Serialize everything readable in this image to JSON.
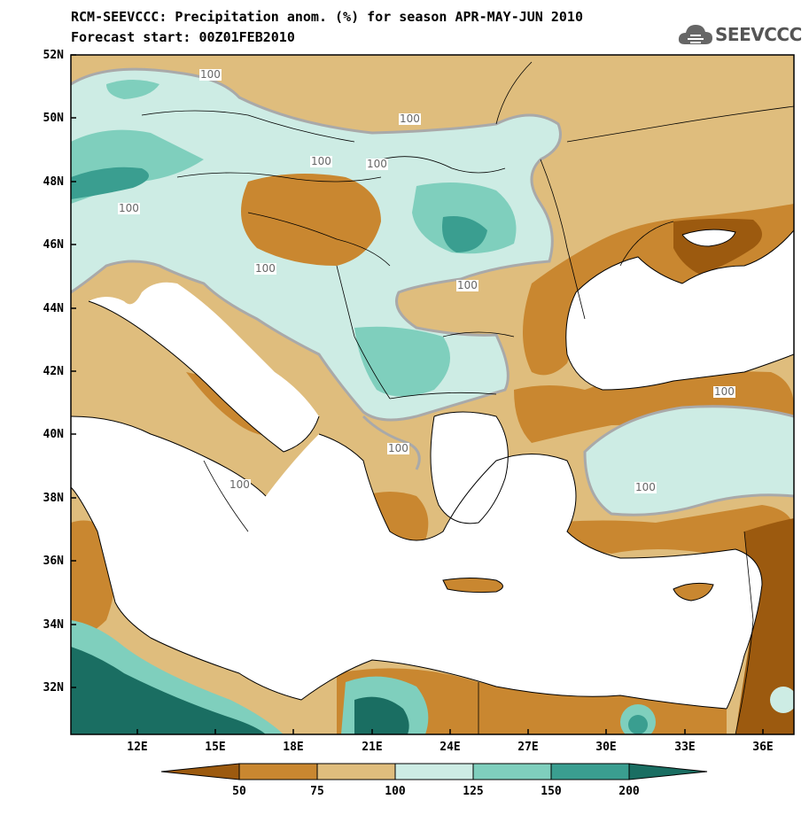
{
  "title": {
    "line1": "RCM-SEEVCCC: Precipitation anom. (%) for season APR-MAY-JUN 2010",
    "line2": "Forecast start: 00Z01FEB2010"
  },
  "logo": {
    "text": "SEEVCCC",
    "icon": "cloud-icon"
  },
  "axes": {
    "lat_labels": [
      "52N",
      "50N",
      "48N",
      "46N",
      "44N",
      "42N",
      "40N",
      "38N",
      "36N",
      "34N",
      "32N"
    ],
    "lon_labels": [
      "12E",
      "15E",
      "18E",
      "21E",
      "24E",
      "27E",
      "30E",
      "33E",
      "36E"
    ]
  },
  "contour_labels": [
    "100",
    "100",
    "100",
    "100",
    "100",
    "100",
    "100",
    "100",
    "100",
    "100",
    "100"
  ],
  "colorbar": {
    "tick_labels": [
      "50",
      "75",
      "100",
      "125",
      "150",
      "200"
    ],
    "colors": [
      "#9c5a0f",
      "#c98730",
      "#dfbd7d",
      "#cdece4",
      "#7fcfbd",
      "#3a9e90",
      "#1a6e62"
    ]
  },
  "palette": {
    "sea": "#ffffff",
    "dark_brown": "#9c5a0f",
    "brown": "#c98730",
    "tan": "#dfbd7d",
    "light_teal": "#cdece4",
    "teal": "#7fcfbd",
    "mid_teal": "#3a9e90",
    "dark_teal": "#1a6e62",
    "contour_100": "#a9a9a9"
  }
}
